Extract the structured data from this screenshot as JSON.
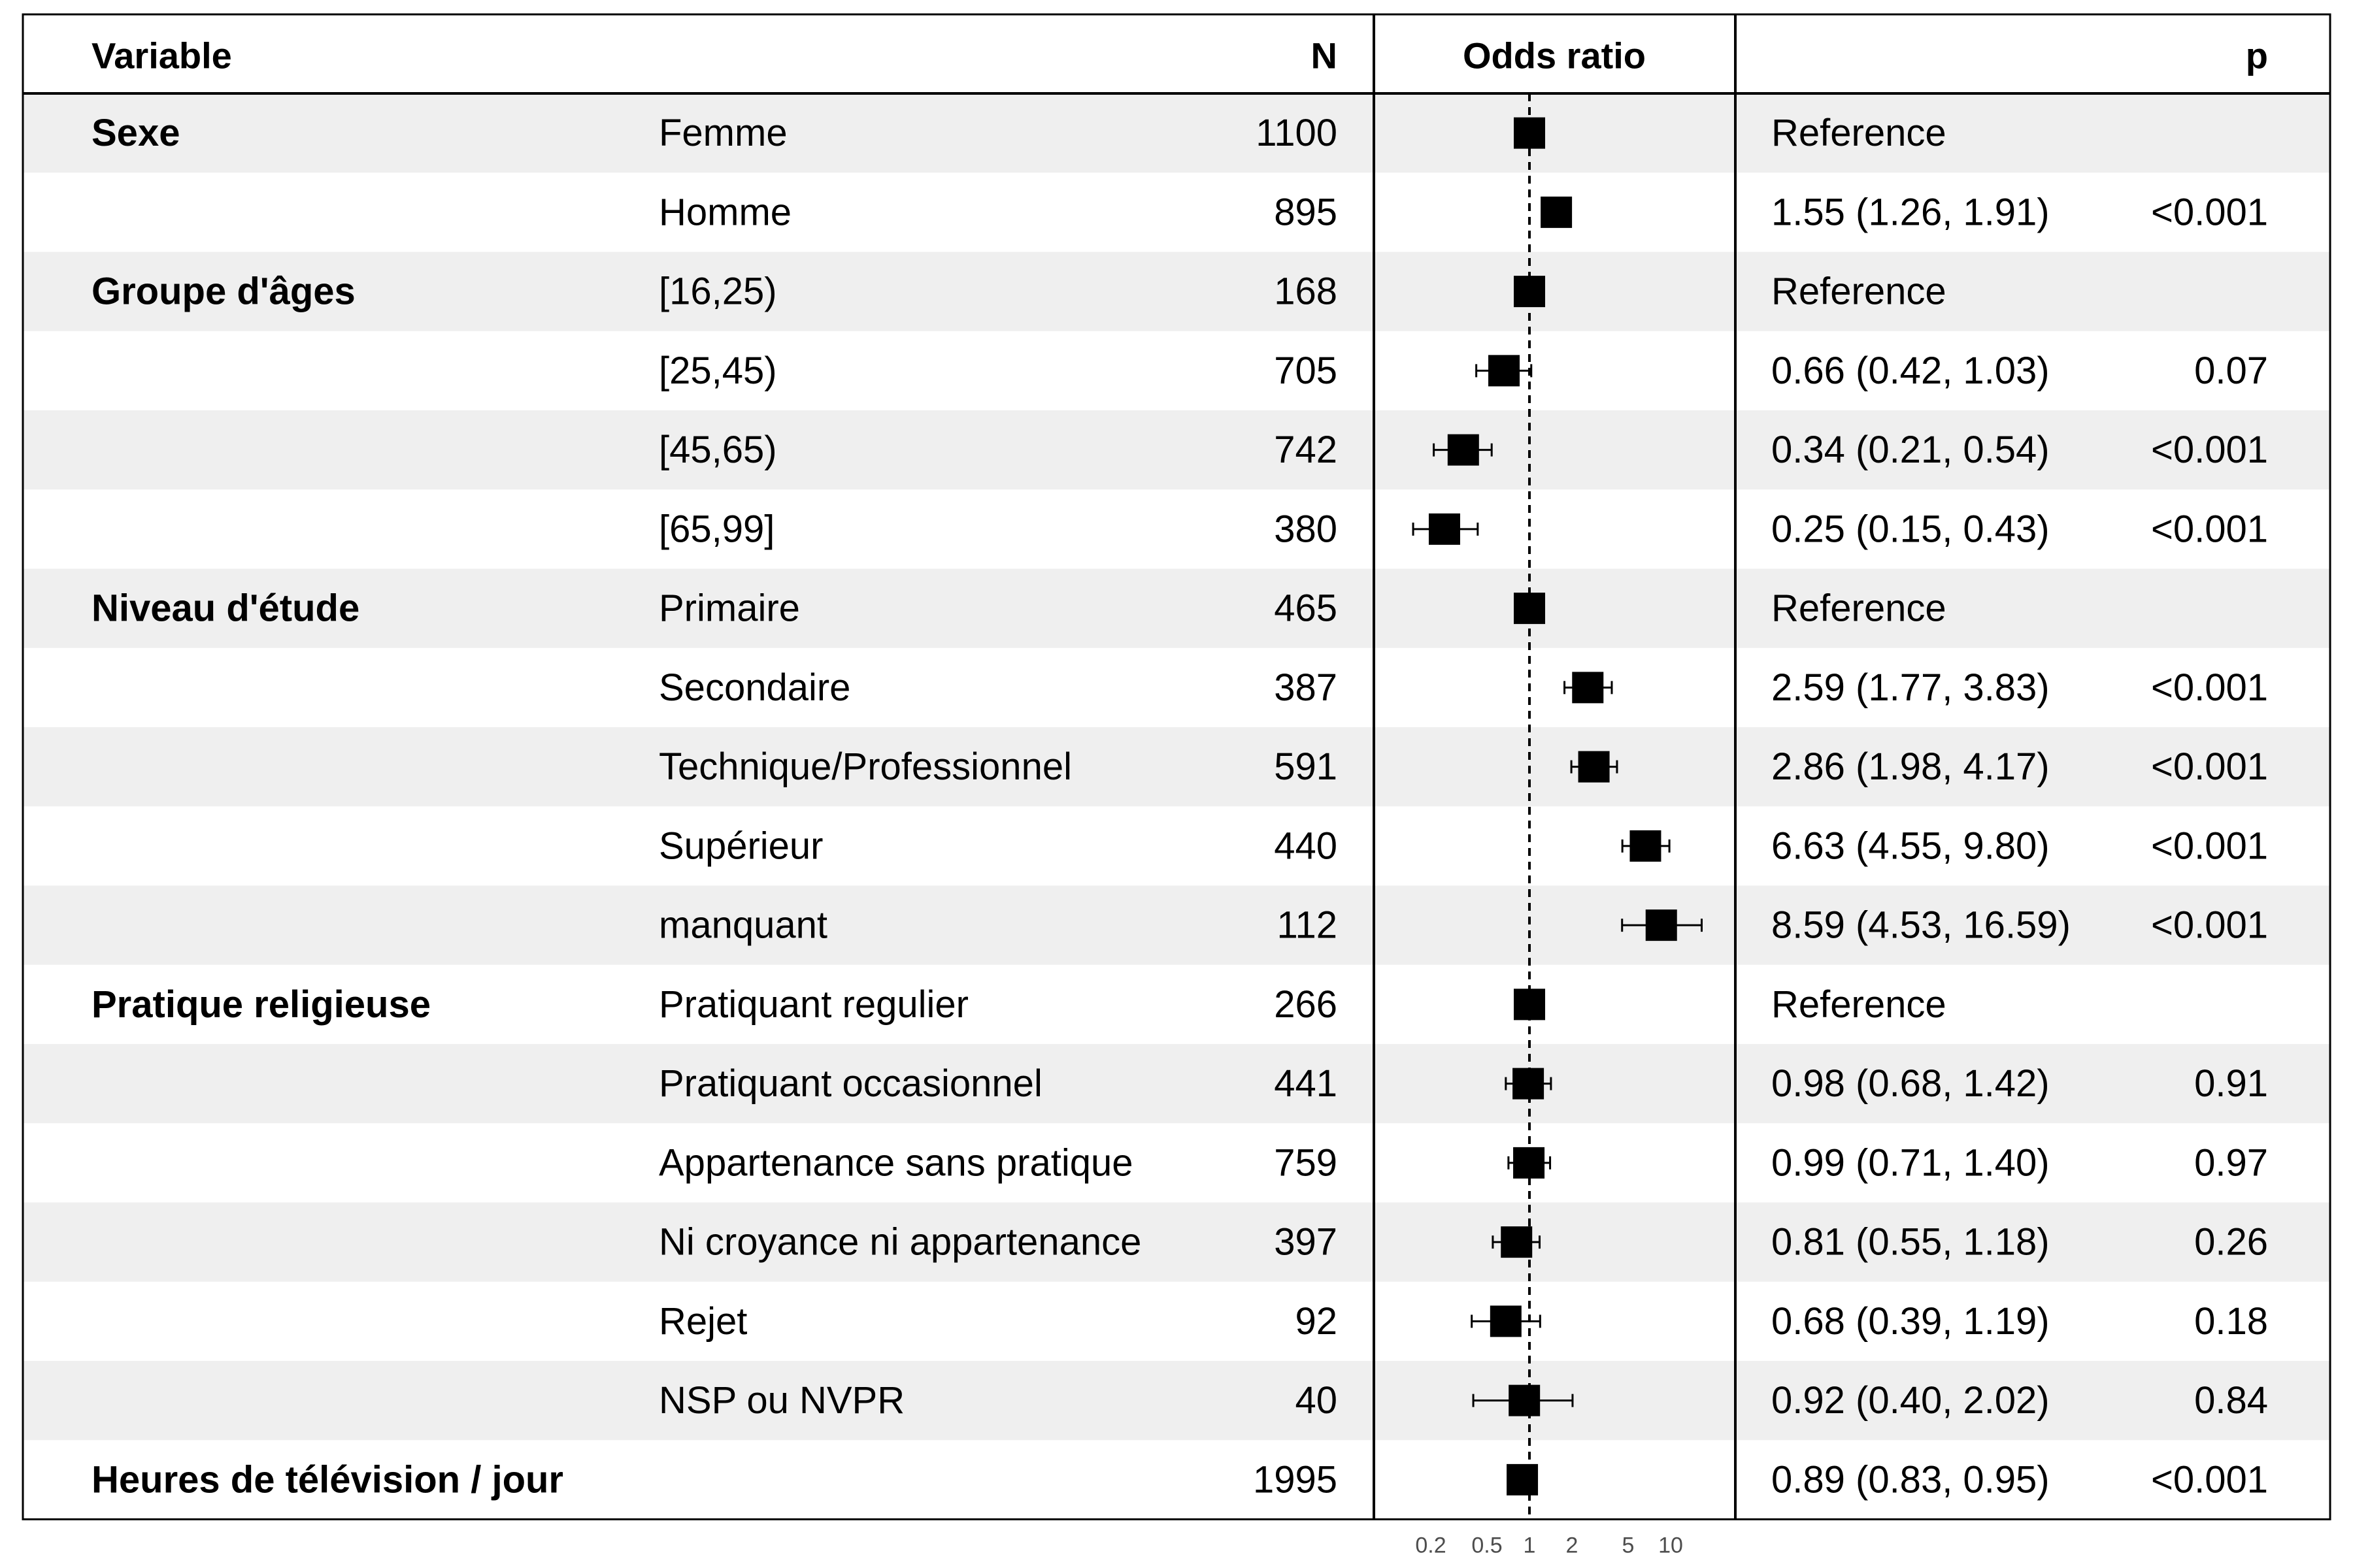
{
  "header": {
    "variable": "Variable",
    "n": "N",
    "odds_ratio": "Odds ratio",
    "p": "p"
  },
  "chart_data": {
    "type": "forest",
    "x_scale": "log",
    "xlim": [
      0.15,
      20
    ],
    "reference_line": 1,
    "x_ticks": [
      0.2,
      0.5,
      1,
      2,
      5,
      10
    ],
    "x_tick_labels": [
      "0.2",
      "0.5",
      "1",
      "2",
      "5",
      "10"
    ],
    "rows": [
      {
        "group": "Sexe",
        "level": "Femme",
        "n": "1100",
        "or": 1,
        "lo": null,
        "hi": null,
        "est_text": "Reference",
        "p": ""
      },
      {
        "group": "",
        "level": "Homme",
        "n": "895",
        "or": 1.55,
        "lo": 1.26,
        "hi": 1.91,
        "est_text": "1.55 (1.26, 1.91)",
        "p": "<0.001"
      },
      {
        "group": "Groupe d'âges",
        "level": "[16,25)",
        "n": "168",
        "or": 1,
        "lo": null,
        "hi": null,
        "est_text": "Reference",
        "p": ""
      },
      {
        "group": "",
        "level": "[25,45)",
        "n": "705",
        "or": 0.66,
        "lo": 0.42,
        "hi": 1.03,
        "est_text": "0.66 (0.42, 1.03)",
        "p": "0.07"
      },
      {
        "group": "",
        "level": "[45,65)",
        "n": "742",
        "or": 0.34,
        "lo": 0.21,
        "hi": 0.54,
        "est_text": "0.34 (0.21, 0.54)",
        "p": "<0.001"
      },
      {
        "group": "",
        "level": "[65,99]",
        "n": "380",
        "or": 0.25,
        "lo": 0.15,
        "hi": 0.43,
        "est_text": "0.25 (0.15, 0.43)",
        "p": "<0.001"
      },
      {
        "group": "Niveau d'étude",
        "level": "Primaire",
        "n": "465",
        "or": 1,
        "lo": null,
        "hi": null,
        "est_text": "Reference",
        "p": ""
      },
      {
        "group": "",
        "level": "Secondaire",
        "n": "387",
        "or": 2.59,
        "lo": 1.77,
        "hi": 3.83,
        "est_text": "2.59 (1.77, 3.83)",
        "p": "<0.001"
      },
      {
        "group": "",
        "level": "Technique/Professionnel",
        "n": "591",
        "or": 2.86,
        "lo": 1.98,
        "hi": 4.17,
        "est_text": "2.86 (1.98, 4.17)",
        "p": "<0.001"
      },
      {
        "group": "",
        "level": "Supérieur",
        "n": "440",
        "or": 6.63,
        "lo": 4.55,
        "hi": 9.8,
        "est_text": "6.63 (4.55, 9.80)",
        "p": "<0.001"
      },
      {
        "group": "",
        "level": "manquant",
        "n": "112",
        "or": 8.59,
        "lo": 4.53,
        "hi": 16.59,
        "est_text": "8.59 (4.53, 16.59)",
        "p": "<0.001"
      },
      {
        "group": "Pratique religieuse",
        "level": "Pratiquant regulier",
        "n": "266",
        "or": 1,
        "lo": null,
        "hi": null,
        "est_text": "Reference",
        "p": ""
      },
      {
        "group": "",
        "level": "Pratiquant occasionnel",
        "n": "441",
        "or": 0.98,
        "lo": 0.68,
        "hi": 1.42,
        "est_text": "0.98 (0.68, 1.42)",
        "p": "0.91"
      },
      {
        "group": "",
        "level": "Appartenance sans pratique",
        "n": "759",
        "or": 0.99,
        "lo": 0.71,
        "hi": 1.4,
        "est_text": "0.99 (0.71, 1.40)",
        "p": "0.97"
      },
      {
        "group": "",
        "level": "Ni croyance ni appartenance",
        "n": "397",
        "or": 0.81,
        "lo": 0.55,
        "hi": 1.18,
        "est_text": "0.81 (0.55, 1.18)",
        "p": "0.26"
      },
      {
        "group": "",
        "level": "Rejet",
        "n": "92",
        "or": 0.68,
        "lo": 0.39,
        "hi": 1.19,
        "est_text": "0.68 (0.39, 1.19)",
        "p": "0.18"
      },
      {
        "group": "",
        "level": "NSP ou NVPR",
        "n": "40",
        "or": 0.92,
        "lo": 0.4,
        "hi": 2.02,
        "est_text": "0.92 (0.40, 2.02)",
        "p": "0.84"
      },
      {
        "group": "Heures de télévision / jour",
        "level": "",
        "n": "1995",
        "or": 0.89,
        "lo": 0.83,
        "hi": 0.95,
        "est_text": "0.89 (0.83, 0.95)",
        "p": "<0.001"
      }
    ],
    "colors": {
      "stripe": "#efefef",
      "ink": "#000000",
      "tick_text": "#4d4d4d"
    }
  }
}
